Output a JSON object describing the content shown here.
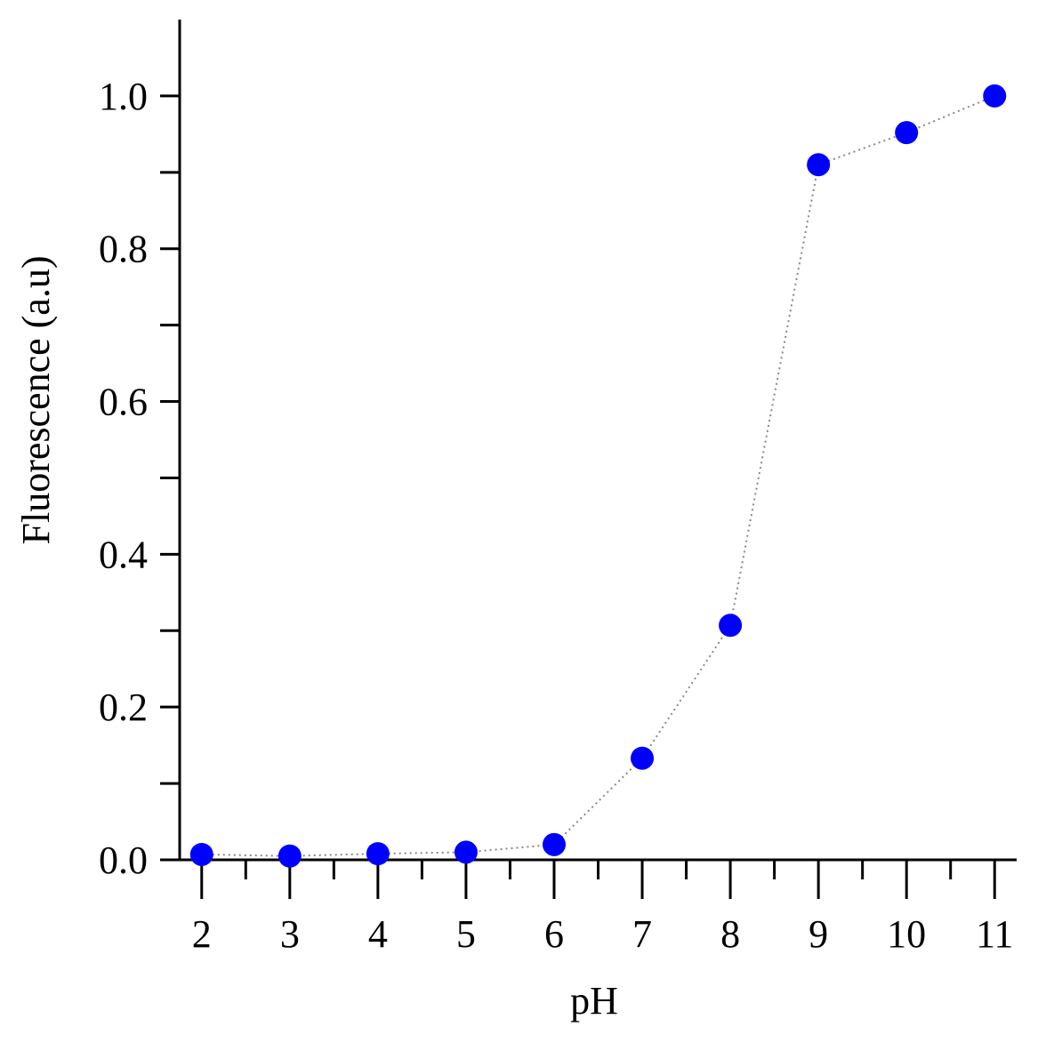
{
  "chart_data": {
    "type": "scatter",
    "x_label": "pH",
    "y_label": "Fluorescence (a.u)",
    "x": [
      2,
      3,
      4,
      5,
      6,
      7,
      8,
      9,
      10,
      11
    ],
    "series": [
      {
        "color": "#0000ff",
        "line_color": "#888888",
        "line_style": "dotted",
        "values": [
          0.007,
          0.005,
          0.008,
          0.01,
          0.02,
          0.133,
          0.307,
          0.91,
          0.952,
          1.0
        ]
      }
    ],
    "xlim": [
      1.75,
      11.25
    ],
    "xticks": [
      2,
      3,
      4,
      5,
      6,
      7,
      8,
      9,
      10,
      11
    ],
    "x_minor_ticks": [
      2.5,
      3.5,
      4.5,
      5.5,
      6.5,
      7.5,
      8.5,
      9.5,
      10.5
    ],
    "ylim": [
      0,
      1.1
    ],
    "yticks": [
      {
        "value": 0,
        "label": "0.0"
      },
      {
        "value": 0.2,
        "label": "0.2"
      },
      {
        "value": 0.4,
        "label": "0.4"
      },
      {
        "value": 0.6,
        "label": "0.6"
      },
      {
        "value": 0.8,
        "label": "0.8"
      },
      {
        "value": 1.0,
        "label": "1.0"
      }
    ],
    "y_minor_ticks": [
      0.1,
      0.3,
      0.5,
      0.7,
      0.9
    ],
    "grid": false
  }
}
